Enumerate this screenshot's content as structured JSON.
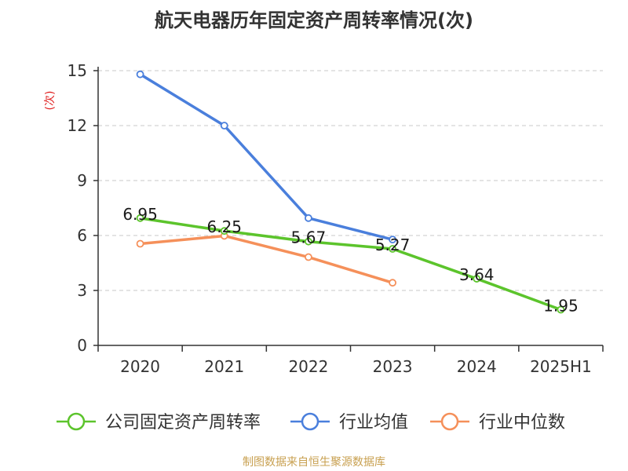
{
  "chart_data": {
    "type": "line",
    "title": "航天电器历年固定资产周转率情况(次)",
    "ylabel": "(次)",
    "categories": [
      "2020",
      "2021",
      "2022",
      "2023",
      "2024",
      "2025H1"
    ],
    "ylim": [
      0,
      15
    ],
    "yticks": [
      0,
      3,
      6,
      9,
      12,
      15
    ],
    "grid": true,
    "legend_position": "bottom",
    "series": [
      {
        "name": "公司固定资产周转率",
        "color": "#5cc42c",
        "values": [
          6.95,
          6.25,
          5.67,
          5.27,
          3.64,
          1.95
        ],
        "labels": [
          "6.95",
          "6.25",
          "5.67",
          "5.27",
          "3.64",
          "1.95"
        ]
      },
      {
        "name": "行业均值",
        "color": "#4a7fdc",
        "values": [
          14.8,
          12.0,
          6.95,
          5.78,
          null,
          null
        ]
      },
      {
        "name": "行业中位数",
        "color": "#f5905a",
        "values": [
          5.55,
          5.98,
          4.82,
          3.42,
          null,
          null
        ]
      }
    ],
    "source": "制图数据来自恒生聚源数据库"
  }
}
